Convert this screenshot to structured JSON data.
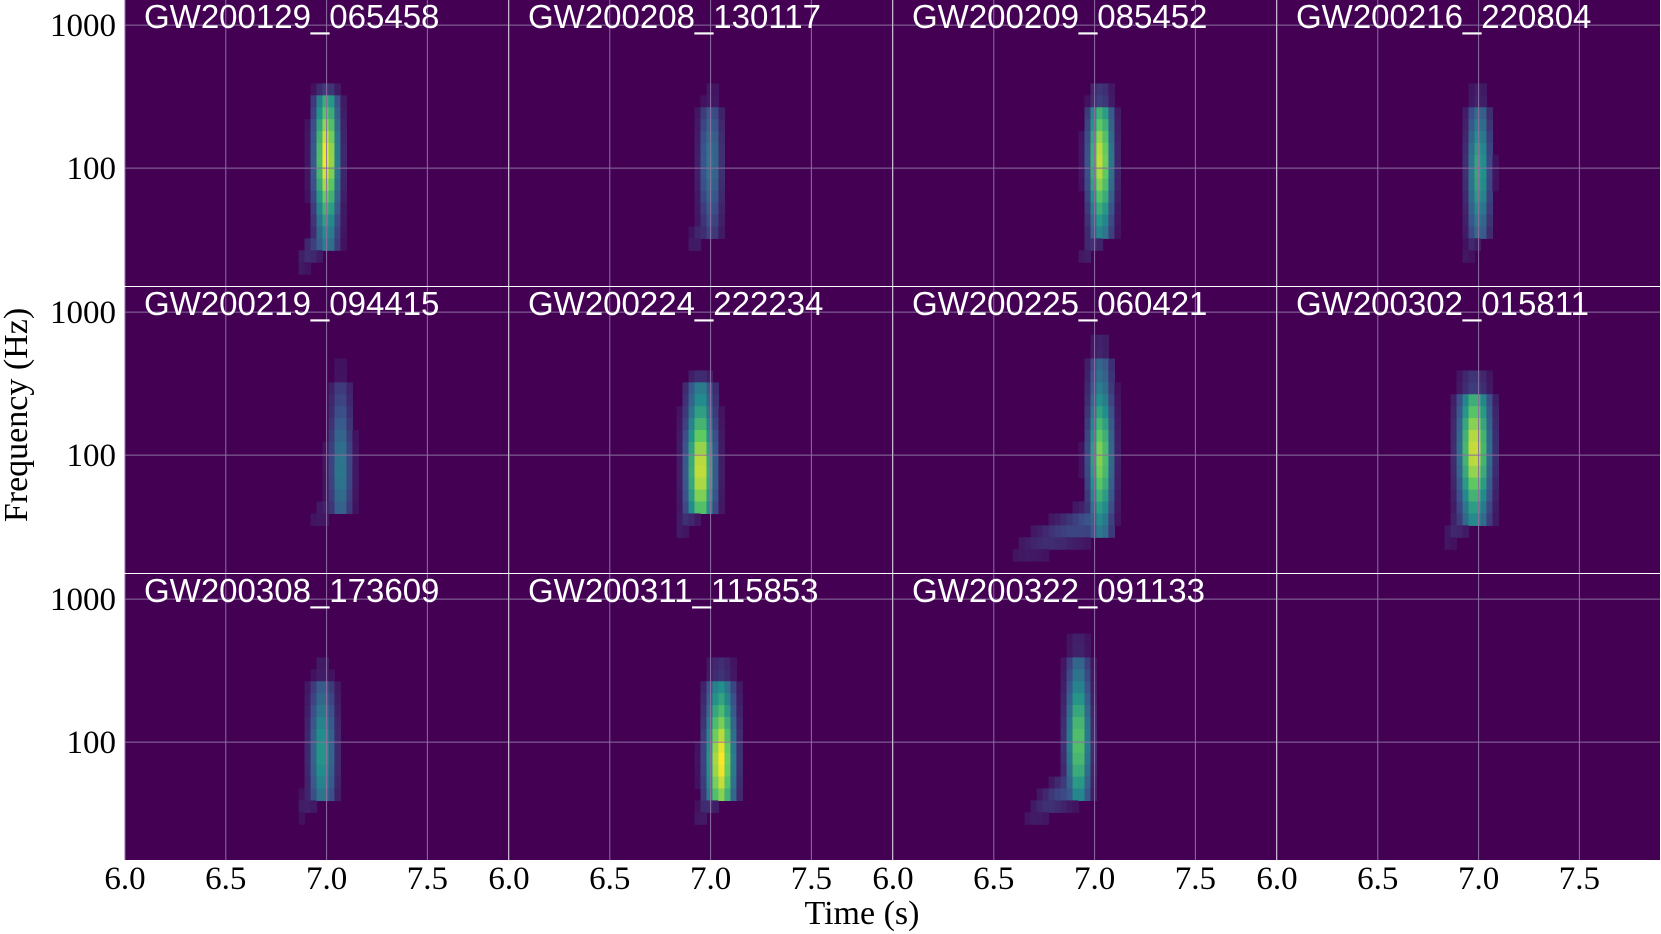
{
  "chart_data": {
    "type": "heatmap",
    "layout": {
      "rows": 3,
      "cols": 4
    },
    "xlabel": "Time (s)",
    "ylabel": "Frequency (Hz)",
    "xlim": [
      6.0,
      7.9
    ],
    "ylim": [
      15,
      1500
    ],
    "yscale": "log",
    "xticks": [
      6.0,
      6.5,
      7.0,
      7.5
    ],
    "xtick_labels": [
      "6.0",
      "6.5",
      "7.0",
      "7.5"
    ],
    "yticks": [
      100,
      1000
    ],
    "ytick_labels": [
      "100",
      "1000"
    ],
    "grid": true,
    "colormap": "viridis",
    "colors": {
      "background": "#440154",
      "grid": "#8b6f9e"
    },
    "panels": [
      {
        "title": "GW200129_065458",
        "track": {
          "t": 7.0,
          "width": 0.085,
          "low_t": 6.82,
          "f_min": 28,
          "f_max": 300,
          "peak": 1.0,
          "peak_f": 120,
          "tail": 0.3
        }
      },
      {
        "title": "GW200208_130117",
        "track": {
          "t": 7.0,
          "width": 0.08,
          "low_t": 6.85,
          "f_min": 35,
          "f_max": 280,
          "peak": 0.4,
          "peak_f": 110,
          "tail": 0.2
        }
      },
      {
        "title": "GW200209_085452",
        "track": {
          "t": 7.03,
          "width": 0.085,
          "low_t": 6.9,
          "f_min": 30,
          "f_max": 290,
          "peak": 0.92,
          "peak_f": 115,
          "tail": 0.25
        }
      },
      {
        "title": "GW200216_220804",
        "track": {
          "t": 7.0,
          "width": 0.08,
          "low_t": 6.9,
          "f_min": 30,
          "f_max": 260,
          "peak": 0.6,
          "peak_f": 95,
          "tail": 0.2
        }
      },
      {
        "title": "GW200219_094415",
        "track": {
          "t": 7.07,
          "width": 0.08,
          "low_t": 6.85,
          "f_min": 40,
          "f_max": 330,
          "peak": 0.42,
          "peak_f": 80,
          "tail": 0.15
        }
      },
      {
        "title": "GW200224_222234",
        "track": {
          "t": 6.95,
          "width": 0.1,
          "low_t": 6.8,
          "f_min": 40,
          "f_max": 300,
          "peak": 0.95,
          "peak_f": 80,
          "tail": 0.3
        }
      },
      {
        "title": "GW200225_060421",
        "track": {
          "t": 7.03,
          "width": 0.085,
          "low_t": 6.5,
          "f_min": 28,
          "f_max": 500,
          "peak": 0.82,
          "peak_f": 95,
          "tail": 0.3
        }
      },
      {
        "title": "GW200302_015811",
        "track": {
          "t": 6.98,
          "width": 0.11,
          "low_t": 6.8,
          "f_min": 35,
          "f_max": 280,
          "peak": 0.95,
          "peak_f": 110,
          "tail": 0.3
        }
      },
      {
        "title": "GW200308_173609",
        "track": {
          "t": 6.98,
          "width": 0.09,
          "low_t": 6.8,
          "f_min": 40,
          "f_max": 290,
          "peak": 0.55,
          "peak_f": 85,
          "tail": 0.2
        }
      },
      {
        "title": "GW200311_115853",
        "track": {
          "t": 7.05,
          "width": 0.1,
          "low_t": 6.9,
          "f_min": 40,
          "f_max": 290,
          "peak": 1.0,
          "peak_f": 75,
          "tail": 0.3
        }
      },
      {
        "title": "GW200322_091133",
        "track": {
          "t": 6.92,
          "width": 0.085,
          "low_t": 6.6,
          "f_min": 40,
          "f_max": 420,
          "peak": 0.75,
          "peak_f": 100,
          "tail": 0.3
        }
      },
      {
        "title": "",
        "track": null
      }
    ]
  }
}
